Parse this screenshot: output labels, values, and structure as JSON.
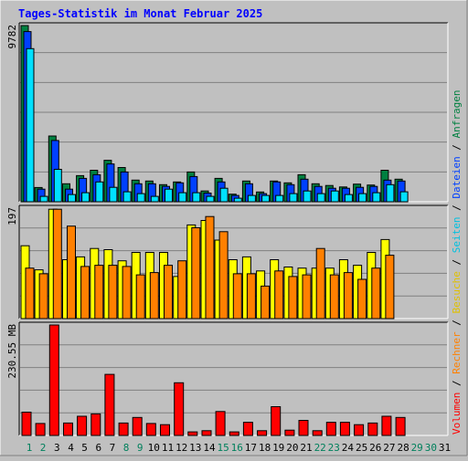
{
  "chart_data": {
    "type": "bar",
    "title": "Tages-Statistik im Monat Februar 2025",
    "days": [
      "1",
      "2",
      "3",
      "4",
      "5",
      "6",
      "7",
      "8",
      "9",
      "10",
      "11",
      "12",
      "13",
      "14",
      "15",
      "16",
      "17",
      "18",
      "19",
      "20",
      "21",
      "22",
      "23",
      "24",
      "25",
      "26",
      "27",
      "28",
      "29",
      "30",
      "31"
    ],
    "weekend_days": [
      1,
      2,
      8,
      9,
      15,
      16,
      22,
      23,
      29,
      30
    ],
    "colors": {
      "title": "#0000ff",
      "weekday_label": "#000000",
      "weekend_label": "#00805c",
      "hits": "#008040",
      "files": "#0040ff",
      "pages": "#00e0ff",
      "visits": "#ffff00",
      "sites": "#ff8000",
      "kbytes": "#ff0000"
    },
    "panels": [
      {
        "id": "requests",
        "ymax_label": "9782",
        "ymax": 9782,
        "series": [
          {
            "key": "hits",
            "values": [
              9782,
              790,
              3650,
              1000,
              1450,
              1750,
              2300,
              1900,
              1200,
              1150,
              950,
              1100,
              1650,
              600,
              1300,
              420,
              1150,
              540,
              1150,
              1050,
              1500,
              1000,
              900,
              820,
              980,
              930,
              1750,
              1250,
              0,
              0,
              0
            ]
          },
          {
            "key": "files",
            "values": [
              9450,
              700,
              3400,
              700,
              1300,
              1500,
              2100,
              1650,
              1000,
              1000,
              850,
              1050,
              1400,
              480,
              1100,
              350,
              1000,
              450,
              1100,
              950,
              1250,
              850,
              750,
              750,
              800,
              850,
              1200,
              1150,
              0,
              0,
              0
            ]
          },
          {
            "key": "pages",
            "values": [
              8500,
              300,
              1800,
              400,
              500,
              1100,
              800,
              550,
              450,
              300,
              700,
              500,
              500,
              300,
              750,
              200,
              350,
              350,
              350,
              450,
              600,
              450,
              600,
              400,
              450,
              500,
              950,
              550,
              0,
              0,
              0
            ]
          }
        ]
      },
      {
        "id": "visits",
        "ymax_label": "197",
        "ymax": 197,
        "series": [
          {
            "key": "visits",
            "values": [
              130,
              87,
              195,
              105,
              110,
              125,
              123,
              103,
              118,
              118,
              118,
              75,
              167,
              175,
              140,
              105,
              110,
              85,
              105,
              92,
              90,
              90,
              90,
              105,
              95,
              118,
              141,
              0,
              0,
              0,
              0
            ]
          },
          {
            "key": "sites",
            "values": [
              90,
              80,
              195,
              165,
              93,
              95,
              95,
              93,
              78,
              82,
              95,
              103,
              162,
              182,
              155,
              80,
              80,
              58,
              85,
              75,
              78,
              125,
              78,
              82,
              70,
              90,
              113,
              0,
              0,
              0,
              0
            ]
          }
        ]
      },
      {
        "id": "volume",
        "ymax_label": "230.55 MB",
        "ymax": 461.1,
        "mid_label": "230.55 MB",
        "series": [
          {
            "key": "kbytes",
            "values": [
              97,
              50,
              461,
              52,
              80,
              90,
              255,
              52,
              75,
              50,
              45,
              220,
              15,
              20,
              100,
              15,
              55,
              20,
              120,
              22,
              63,
              20,
              55,
              55,
              45,
              52,
              80,
              75,
              0,
              0,
              0
            ]
          }
        ]
      }
    ],
    "right_legend": [
      {
        "text": "Volumen",
        "color": "#ff0000"
      },
      {
        "text": " / ",
        "color": "#000000"
      },
      {
        "text": "Rechner",
        "color": "#ff8000"
      },
      {
        "text": " / ",
        "color": "#000000"
      },
      {
        "text": "Besuche",
        "color": "#e0c000"
      },
      {
        "text": " / ",
        "color": "#000000"
      },
      {
        "text": "Seiten",
        "color": "#00c0e0"
      },
      {
        "text": " / ",
        "color": "#000000"
      },
      {
        "text": "Dateien",
        "color": "#0040ff"
      },
      {
        "text": " / ",
        "color": "#000000"
      },
      {
        "text": "Anfragen",
        "color": "#008040"
      }
    ]
  }
}
